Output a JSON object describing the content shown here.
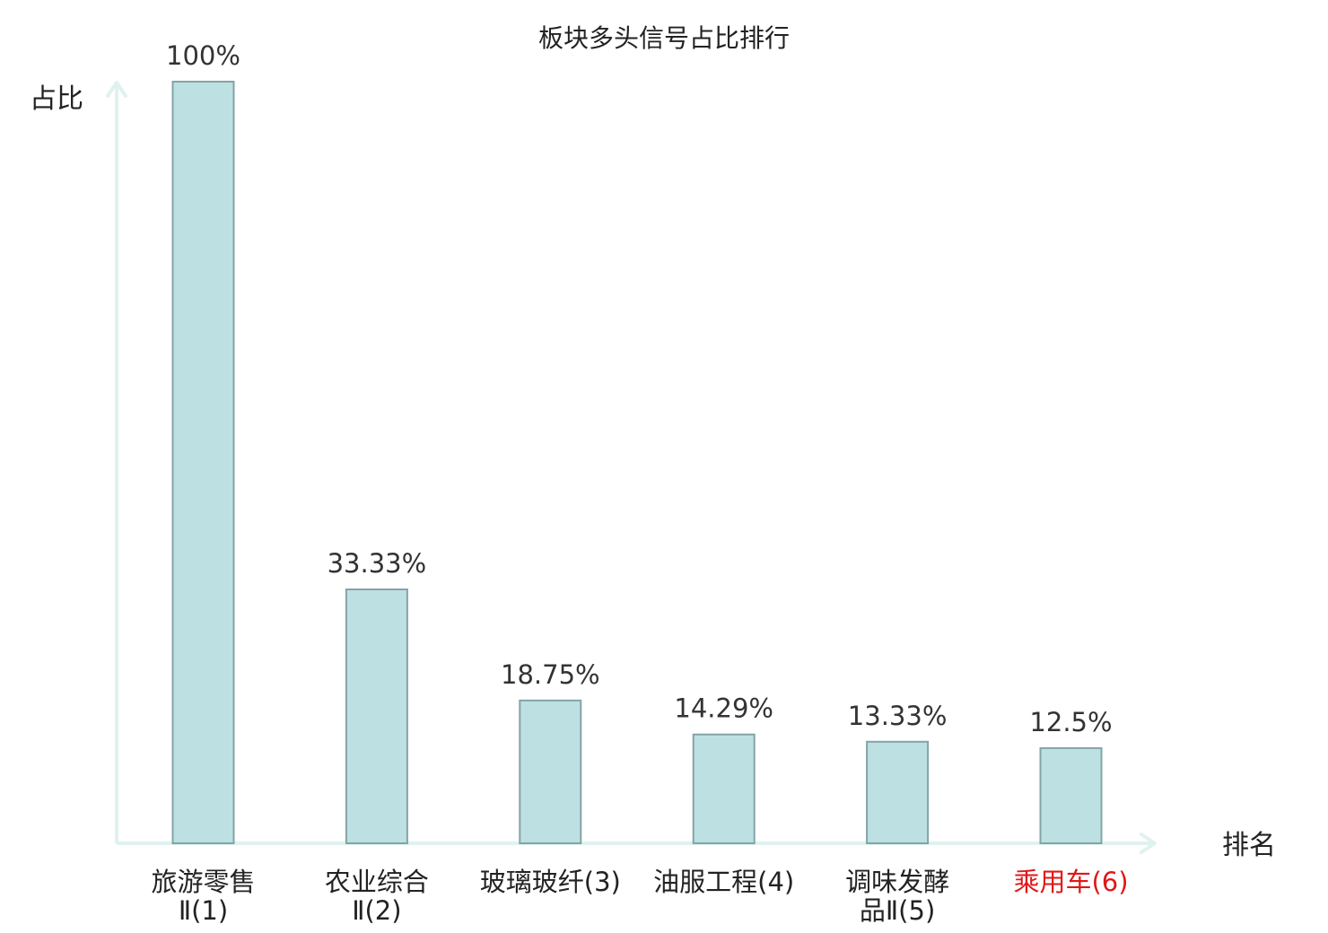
{
  "chart_data": {
    "type": "bar",
    "title": "板块多头信号占比排行",
    "ylabel": "占比",
    "xlabel": "排名",
    "categories": [
      {
        "lines": [
          "旅游零售",
          "Ⅱ(1)"
        ],
        "highlight": false
      },
      {
        "lines": [
          "农业综合",
          "Ⅱ(2)"
        ],
        "highlight": false
      },
      {
        "lines": [
          "玻璃玻纤(3)"
        ],
        "highlight": false
      },
      {
        "lines": [
          "油服工程(4)"
        ],
        "highlight": false
      },
      {
        "lines": [
          "调味发酵",
          "品Ⅱ(5)"
        ],
        "highlight": false
      },
      {
        "lines": [
          "乘用车(6)"
        ],
        "highlight": true
      }
    ],
    "values": [
      100,
      33.33,
      18.75,
      14.29,
      13.33,
      12.5
    ],
    "value_labels": [
      "100%",
      "33.33%",
      "18.75%",
      "14.29%",
      "13.33%",
      "12.5%"
    ],
    "ylim": [
      0,
      100
    ],
    "grid": false,
    "colors": {
      "bar_fill": "#bde0e3",
      "bar_stroke": "#84a4a6",
      "axis": "#dff2ef",
      "text": "#222222",
      "value_text": "#333333",
      "highlight_text": "#e01818"
    }
  }
}
